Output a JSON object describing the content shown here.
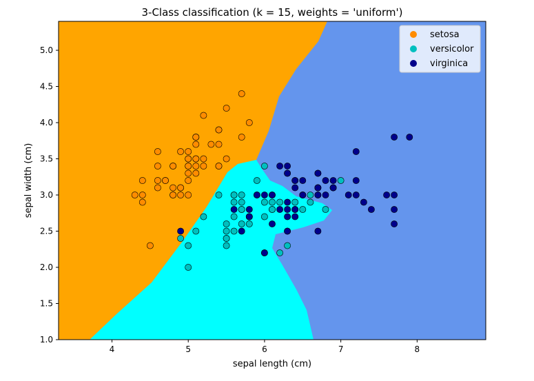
{
  "chart_data": {
    "type": "scatter",
    "title": "3-Class classification (k = 15, weights = 'uniform')",
    "xlabel": "sepal length (cm)",
    "ylabel": "sepal width (cm)",
    "xlim": [
      3.3,
      8.9
    ],
    "ylim": [
      1.0,
      5.4
    ],
    "xticks": [
      "4",
      "5",
      "6",
      "7",
      "8"
    ],
    "yticks": [
      "1.0",
      "1.5",
      "2.0",
      "2.5",
      "3.0",
      "3.5",
      "4.0",
      "4.5",
      "5.0"
    ],
    "legend_position": "top-right",
    "region_colors": {
      "setosa": "#ffa500",
      "versicolor": "#00ffff",
      "virginica": "#6495ed"
    },
    "series": [
      {
        "name": "setosa",
        "color": "#ff8c00",
        "points": [
          [
            5.1,
            3.5
          ],
          [
            4.9,
            3.0
          ],
          [
            4.7,
            3.2
          ],
          [
            4.6,
            3.1
          ],
          [
            5.0,
            3.6
          ],
          [
            5.4,
            3.9
          ],
          [
            4.6,
            3.4
          ],
          [
            5.0,
            3.4
          ],
          [
            4.4,
            2.9
          ],
          [
            4.9,
            3.1
          ],
          [
            5.4,
            3.7
          ],
          [
            4.8,
            3.4
          ],
          [
            4.8,
            3.0
          ],
          [
            4.3,
            3.0
          ],
          [
            5.8,
            4.0
          ],
          [
            5.7,
            4.4
          ],
          [
            5.4,
            3.9
          ],
          [
            5.1,
            3.5
          ],
          [
            5.7,
            3.8
          ],
          [
            5.1,
            3.8
          ],
          [
            5.4,
            3.4
          ],
          [
            5.1,
            3.7
          ],
          [
            4.6,
            3.6
          ],
          [
            5.1,
            3.3
          ],
          [
            4.8,
            3.4
          ],
          [
            5.0,
            3.0
          ],
          [
            5.0,
            3.4
          ],
          [
            5.2,
            3.5
          ],
          [
            5.2,
            3.4
          ],
          [
            4.7,
            3.2
          ],
          [
            4.8,
            3.1
          ],
          [
            5.4,
            3.4
          ],
          [
            5.2,
            4.1
          ],
          [
            5.5,
            4.2
          ],
          [
            4.9,
            3.1
          ],
          [
            5.0,
            3.2
          ],
          [
            5.5,
            3.5
          ],
          [
            4.9,
            3.6
          ],
          [
            4.4,
            3.0
          ],
          [
            5.1,
            3.4
          ],
          [
            5.0,
            3.5
          ],
          [
            4.5,
            2.3
          ],
          [
            4.4,
            3.2
          ],
          [
            5.0,
            3.5
          ],
          [
            5.1,
            3.8
          ],
          [
            4.8,
            3.0
          ],
          [
            5.1,
            3.8
          ],
          [
            4.6,
            3.2
          ],
          [
            5.3,
            3.7
          ],
          [
            5.0,
            3.3
          ]
        ]
      },
      {
        "name": "versicolor",
        "color": "#00bfbf",
        "points": [
          [
            7.0,
            3.2
          ],
          [
            6.4,
            3.2
          ],
          [
            6.9,
            3.1
          ],
          [
            5.5,
            2.3
          ],
          [
            6.5,
            2.8
          ],
          [
            5.7,
            2.8
          ],
          [
            6.3,
            3.3
          ],
          [
            4.9,
            2.4
          ],
          [
            6.6,
            2.9
          ],
          [
            5.2,
            2.7
          ],
          [
            5.0,
            2.0
          ],
          [
            5.9,
            3.0
          ],
          [
            6.0,
            2.2
          ],
          [
            6.1,
            2.9
          ],
          [
            5.6,
            2.9
          ],
          [
            6.7,
            3.1
          ],
          [
            5.6,
            3.0
          ],
          [
            5.8,
            2.7
          ],
          [
            6.2,
            2.2
          ],
          [
            5.6,
            2.5
          ],
          [
            5.9,
            3.2
          ],
          [
            6.1,
            2.8
          ],
          [
            6.3,
            2.5
          ],
          [
            6.1,
            2.8
          ],
          [
            6.4,
            2.9
          ],
          [
            6.6,
            3.0
          ],
          [
            6.8,
            2.8
          ],
          [
            6.7,
            3.0
          ],
          [
            6.0,
            2.9
          ],
          [
            5.7,
            2.6
          ],
          [
            5.5,
            2.4
          ],
          [
            5.5,
            2.4
          ],
          [
            5.8,
            2.7
          ],
          [
            6.0,
            2.7
          ],
          [
            5.4,
            3.0
          ],
          [
            6.0,
            3.4
          ],
          [
            6.7,
            3.1
          ],
          [
            6.3,
            2.3
          ],
          [
            5.6,
            3.0
          ],
          [
            5.5,
            2.5
          ],
          [
            5.5,
            2.6
          ],
          [
            6.1,
            3.0
          ],
          [
            5.8,
            2.6
          ],
          [
            5.0,
            2.3
          ],
          [
            5.6,
            2.7
          ],
          [
            5.7,
            3.0
          ],
          [
            5.7,
            2.9
          ],
          [
            6.2,
            2.9
          ],
          [
            5.1,
            2.5
          ],
          [
            5.7,
            2.8
          ]
        ]
      },
      {
        "name": "virginica",
        "color": "#00008b",
        "points": [
          [
            6.3,
            3.3
          ],
          [
            5.8,
            2.7
          ],
          [
            7.1,
            3.0
          ],
          [
            6.3,
            2.9
          ],
          [
            6.5,
            3.0
          ],
          [
            7.6,
            3.0
          ],
          [
            4.9,
            2.5
          ],
          [
            7.3,
            2.9
          ],
          [
            6.7,
            2.5
          ],
          [
            7.2,
            3.6
          ],
          [
            6.5,
            3.2
          ],
          [
            6.4,
            2.7
          ],
          [
            6.8,
            3.0
          ],
          [
            5.7,
            2.5
          ],
          [
            5.8,
            2.8
          ],
          [
            6.4,
            3.2
          ],
          [
            6.5,
            3.0
          ],
          [
            7.7,
            3.8
          ],
          [
            7.7,
            2.6
          ],
          [
            6.0,
            2.2
          ],
          [
            6.9,
            3.2
          ],
          [
            5.6,
            2.8
          ],
          [
            7.7,
            2.8
          ],
          [
            6.3,
            2.7
          ],
          [
            6.7,
            3.3
          ],
          [
            7.2,
            3.2
          ],
          [
            6.2,
            2.8
          ],
          [
            6.1,
            3.0
          ],
          [
            6.4,
            2.8
          ],
          [
            7.2,
            3.0
          ],
          [
            7.4,
            2.8
          ],
          [
            7.9,
            3.8
          ],
          [
            6.4,
            2.8
          ],
          [
            6.3,
            2.8
          ],
          [
            6.1,
            2.6
          ],
          [
            7.7,
            3.0
          ],
          [
            6.3,
            3.4
          ],
          [
            6.4,
            3.1
          ],
          [
            6.0,
            3.0
          ],
          [
            6.9,
            3.1
          ],
          [
            6.7,
            3.1
          ],
          [
            6.9,
            3.1
          ],
          [
            5.8,
            2.7
          ],
          [
            6.8,
            3.2
          ],
          [
            6.7,
            3.3
          ],
          [
            6.7,
            3.0
          ],
          [
            6.3,
            2.5
          ],
          [
            6.5,
            3.0
          ],
          [
            6.2,
            3.4
          ],
          [
            5.9,
            3.0
          ]
        ]
      }
    ]
  }
}
